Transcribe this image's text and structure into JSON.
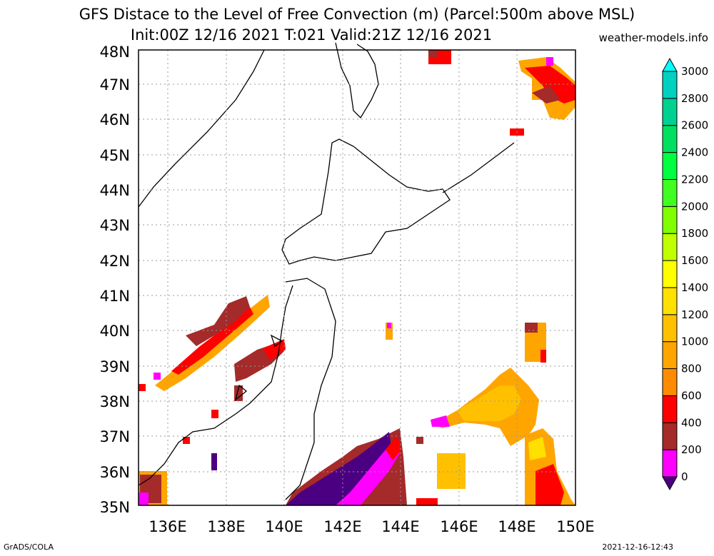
{
  "header": {
    "title_line1": "GFS Distace to the Level of Free Convection (m) (Parcel:500m above MSL)",
    "title_line2": "Init:00Z 12/16 2021 T:021 Valid:21Z 12/16 2021",
    "source": "weather-models.info"
  },
  "footer": {
    "left": "GrADS/COLA",
    "right": "2021-12-16-12:43"
  },
  "map": {
    "lat_labels": [
      "35N",
      "36N",
      "37N",
      "38N",
      "39N",
      "40N",
      "41N",
      "42N",
      "43N",
      "44N",
      "45N",
      "46N",
      "47N",
      "48N"
    ],
    "lon_labels": [
      "136E",
      "138E",
      "140E",
      "142E",
      "144E",
      "146E",
      "148E",
      "150E"
    ]
  },
  "colorbar": {
    "labels": [
      "0",
      "200",
      "400",
      "600",
      "800",
      "1000",
      "1200",
      "1400",
      "1600",
      "1800",
      "2000",
      "2200",
      "2400",
      "2600",
      "2800",
      "3000"
    ],
    "colors": [
      "#4b0082",
      "#ff00ff",
      "#a52a2a",
      "#ff0000",
      "#ff8c00",
      "#ffa500",
      "#ffc000",
      "#ffe000",
      "#ffff00",
      "#c0ff00",
      "#80ff00",
      "#40ff20",
      "#00ff40",
      "#00e060",
      "#00d090",
      "#00d0c0",
      "#00ffff"
    ]
  }
}
